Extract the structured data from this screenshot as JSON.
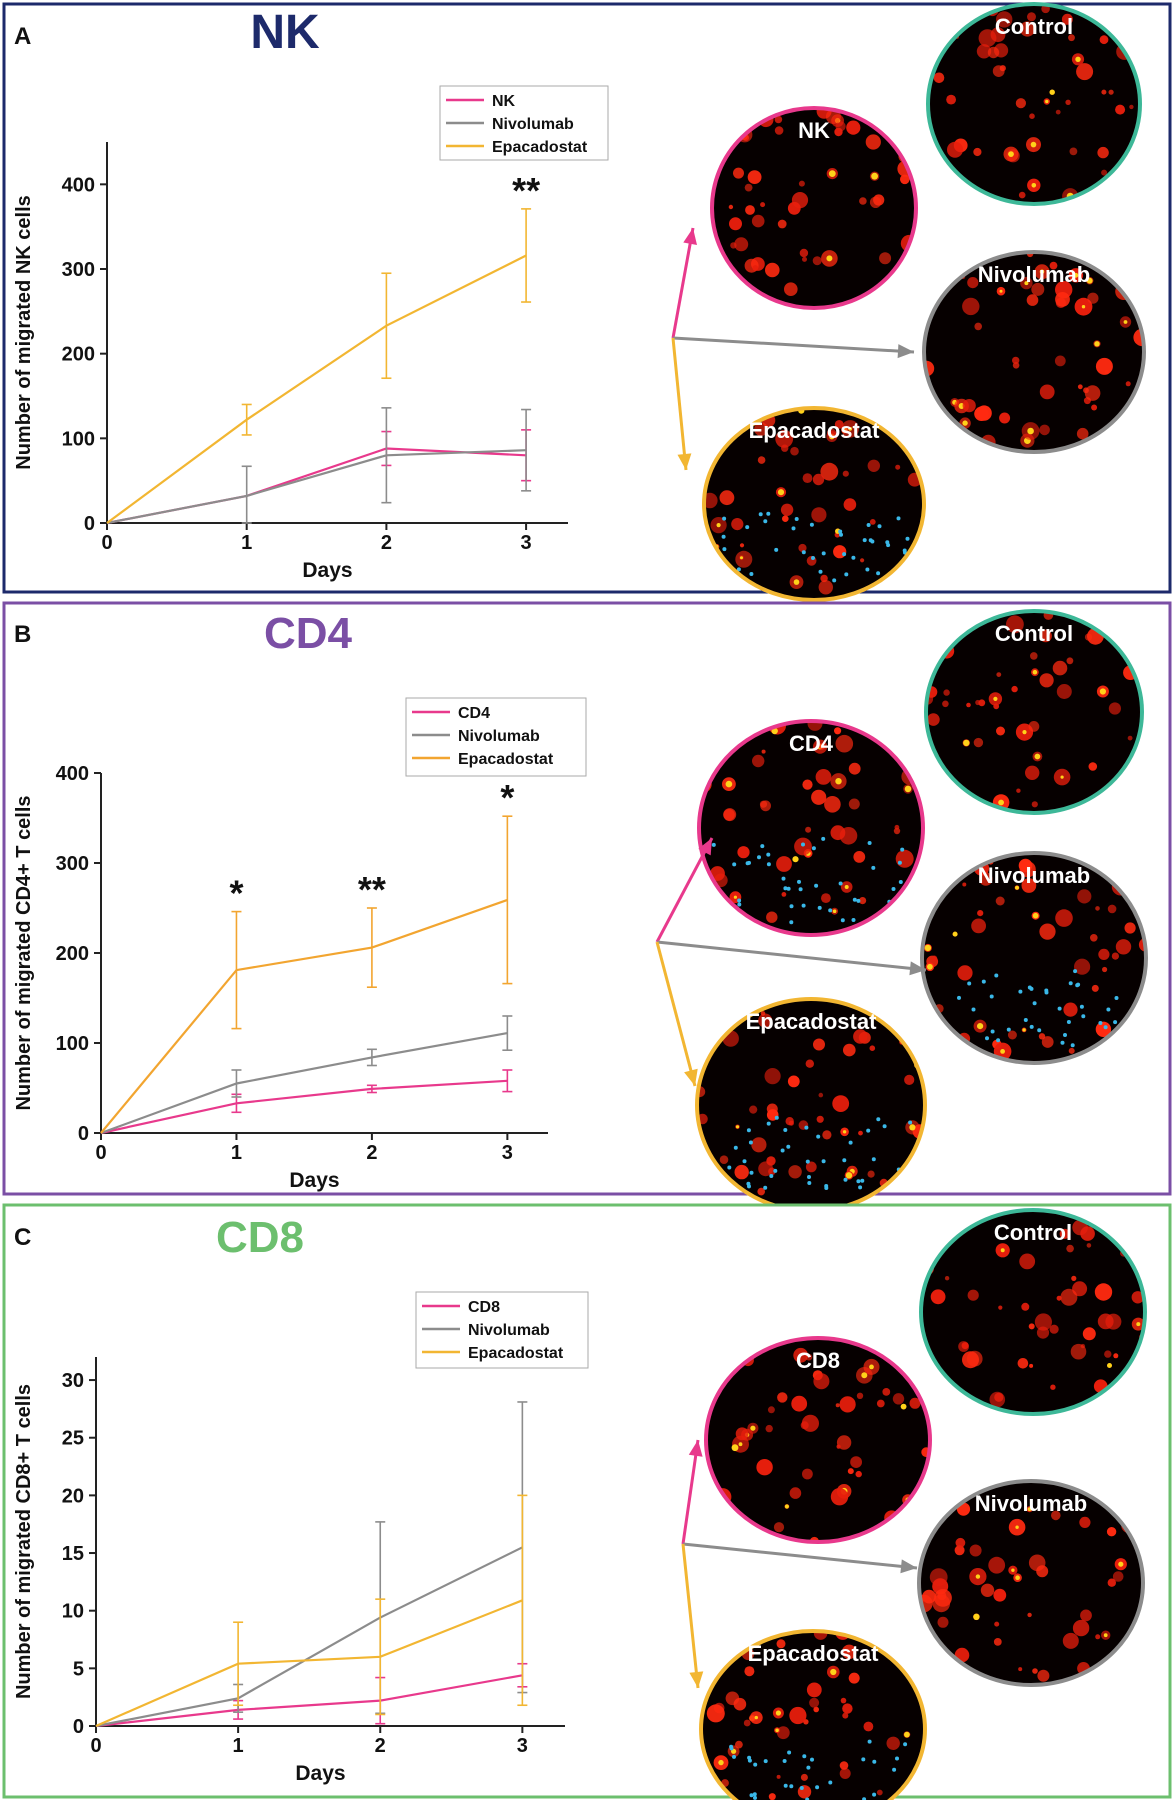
{
  "chart_data": [
    {
      "type": "line",
      "panel_letter": "A",
      "title": "NK",
      "title_color": "#1d2a6b",
      "border_color": "#1d2a6b",
      "xlabel": "Days",
      "ylabel": "Number of migrated NK cells",
      "x": [
        0,
        1,
        2,
        3
      ],
      "xticks": [
        "0",
        "1",
        "2",
        "3"
      ],
      "xlim": [
        0,
        3.3
      ],
      "ylim": [
        0,
        450
      ],
      "yticks": [
        0,
        100,
        200,
        300,
        400
      ],
      "series": [
        {
          "name": "NK",
          "color": "#e8398c",
          "values": [
            0,
            32,
            88,
            80
          ],
          "err": [
            0,
            0,
            20,
            30
          ]
        },
        {
          "name": "Nivolumab",
          "color": "#8c8c8c",
          "values": [
            0,
            32,
            80,
            86
          ],
          "err": [
            0,
            35,
            56,
            48
          ]
        },
        {
          "name": "Epacadostat",
          "color": "#f2b632",
          "values": [
            0,
            122,
            233,
            316
          ],
          "err": [
            0,
            18,
            62,
            55
          ]
        }
      ],
      "annotations": [
        {
          "day": 3,
          "text": "**"
        }
      ],
      "images": [
        {
          "label": "Control",
          "ring": "#3db898"
        },
        {
          "label": "NK",
          "ring": "#e8398c"
        },
        {
          "label": "Nivolumab",
          "ring": "#8c8c8c"
        },
        {
          "label": "Epacadostat",
          "ring": "#f2b632"
        }
      ]
    },
    {
      "type": "line",
      "panel_letter": "B",
      "title": "CD4",
      "title_color": "#7b4fa5",
      "border_color": "#7b4fa5",
      "xlabel": "Days",
      "ylabel": "Number of migrated CD4+ T cells",
      "x": [
        0,
        1,
        2,
        3
      ],
      "xticks": [
        "0",
        "1",
        "2",
        "3"
      ],
      "xlim": [
        0,
        3.3
      ],
      "ylim": [
        0,
        400
      ],
      "yticks": [
        0,
        100,
        200,
        300,
        400
      ],
      "series": [
        {
          "name": "CD4",
          "color": "#e8398c",
          "values": [
            0,
            33,
            49,
            58
          ],
          "err": [
            0,
            10,
            4,
            12
          ]
        },
        {
          "name": "Nivolumab",
          "color": "#8c8c8c",
          "values": [
            0,
            55,
            84,
            111
          ],
          "err": [
            0,
            15,
            9,
            19
          ]
        },
        {
          "name": "Epacadostat",
          "color": "#f2a530",
          "values": [
            0,
            181,
            206,
            259
          ],
          "err": [
            0,
            65,
            44,
            93
          ]
        }
      ],
      "annotations": [
        {
          "day": 1,
          "text": "*"
        },
        {
          "day": 2,
          "text": "**"
        },
        {
          "day": 3,
          "text": "*"
        }
      ],
      "images": [
        {
          "label": "Control",
          "ring": "#3db898"
        },
        {
          "label": "CD4",
          "ring": "#e8398c"
        },
        {
          "label": "Nivolumab",
          "ring": "#8c8c8c"
        },
        {
          "label": "Epacadostat",
          "ring": "#f2b632"
        }
      ]
    },
    {
      "type": "line",
      "panel_letter": "C",
      "title": "CD8",
      "title_color": "#6cbf6e",
      "border_color": "#6cbf6e",
      "xlabel": "Days",
      "ylabel": "Number of migrated CD8+ T cells",
      "x": [
        0,
        1,
        2,
        3
      ],
      "xticks": [
        "0",
        "1",
        "2",
        "3"
      ],
      "xlim": [
        0,
        3.3
      ],
      "ylim": [
        0,
        32
      ],
      "yticks": [
        0,
        5,
        10,
        15,
        20,
        25,
        30
      ],
      "series": [
        {
          "name": "CD8",
          "color": "#e8398c",
          "values": [
            0,
            1.4,
            2.2,
            4.4
          ],
          "err": [
            0,
            0.8,
            2.0,
            1.0
          ]
        },
        {
          "name": "Nivolumab",
          "color": "#8c8c8c",
          "values": [
            0,
            2.4,
            9.4,
            15.5
          ],
          "err": [
            0,
            1.2,
            8.3,
            12.6
          ]
        },
        {
          "name": "Epacadostat",
          "color": "#f2b632",
          "values": [
            0,
            5.4,
            6.0,
            10.9
          ],
          "err": [
            0,
            3.6,
            5.0,
            9.1
          ]
        }
      ],
      "annotations": [],
      "images": [
        {
          "label": "Control",
          "ring": "#3db898"
        },
        {
          "label": "CD8",
          "ring": "#e8398c"
        },
        {
          "label": "Nivolumab",
          "ring": "#8c8c8c"
        },
        {
          "label": "Epacadostat",
          "ring": "#f2b632"
        }
      ]
    }
  ]
}
